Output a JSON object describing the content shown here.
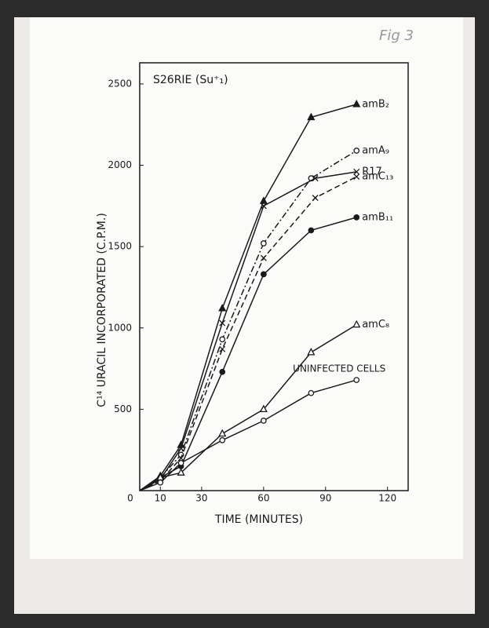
{
  "chart_data": {
    "type": "line",
    "title": "S26RIE (Su⁺₁)",
    "annotation": "Fig 3",
    "xlabel": "TIME (MINUTES)",
    "ylabel": "C¹⁴ URACIL INCORPORATED (C.P.M.)",
    "xlim": [
      0,
      130
    ],
    "ylim": [
      0,
      2630
    ],
    "xticks": [
      0,
      10,
      30,
      60,
      90,
      120
    ],
    "yticks": [
      500,
      1000,
      1500,
      2000,
      2500
    ],
    "series": [
      {
        "name": "amB₂",
        "color": "#1a1a1a",
        "marker": "triangle-filled",
        "dash": "solid",
        "x": [
          0,
          10,
          20,
          40,
          60,
          83,
          105
        ],
        "values": [
          0,
          90,
          280,
          1120,
          1780,
          2295,
          2375
        ]
      },
      {
        "name": "amA₉",
        "color": "#1a1a1a",
        "marker": "circle-open",
        "dash": "dashdot",
        "x": [
          0,
          10,
          20,
          40,
          60,
          83,
          105
        ],
        "values": [
          0,
          80,
          220,
          930,
          1520,
          1920,
          2090
        ]
      },
      {
        "name": "R17",
        "color": "#1a1a1a",
        "marker": "x",
        "dash": "solid",
        "x": [
          0,
          10,
          20,
          40,
          60,
          85,
          105
        ],
        "values": [
          0,
          70,
          260,
          1030,
          1750,
          1920,
          1960
        ]
      },
      {
        "name": "amC₁₃",
        "color": "#1a1a1a",
        "marker": "x",
        "dash": "dashed",
        "x": [
          0,
          10,
          20,
          40,
          60,
          85,
          105
        ],
        "values": [
          0,
          60,
          200,
          870,
          1430,
          1800,
          1930
        ]
      },
      {
        "name": "amB₁₁",
        "color": "#1a1a1a",
        "marker": "circle-filled",
        "dash": "solid",
        "x": [
          0,
          10,
          20,
          40,
          60,
          83,
          105
        ],
        "values": [
          0,
          80,
          150,
          730,
          1330,
          1600,
          1680
        ]
      },
      {
        "name": "amC₈",
        "color": "#1a1a1a",
        "marker": "triangle-open",
        "dash": "solid",
        "x": [
          0,
          10,
          20,
          40,
          60,
          83,
          105
        ],
        "values": [
          0,
          80,
          110,
          350,
          500,
          850,
          1020
        ]
      },
      {
        "name": "UNINFECTED CELLS",
        "color": "#1a1a1a",
        "marker": "circle-open",
        "dash": "solid",
        "x": [
          0,
          10,
          20,
          40,
          60,
          83,
          105
        ],
        "values": [
          0,
          50,
          170,
          310,
          430,
          600,
          680
        ]
      }
    ]
  }
}
